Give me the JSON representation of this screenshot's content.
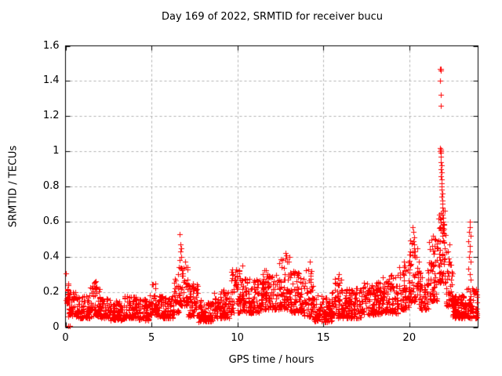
{
  "chart_data": {
    "type": "scatter",
    "title": "Day 169 of 2022, SRMTID for receiver bucu",
    "xlabel": "GPS time / hours",
    "ylabel": "SRMTID / TECUs",
    "xlim": [
      0,
      24
    ],
    "ylim": [
      0,
      1.6
    ],
    "xticks": [
      "0",
      "5",
      "10",
      "15",
      "20"
    ],
    "yticks": [
      "0",
      "0.2",
      "0.4",
      "0.6",
      "0.8",
      "1",
      "1.2",
      "1.4",
      "1.6"
    ],
    "grid": true,
    "legend": "none",
    "marker": "+",
    "marker_color": "#ff0000",
    "grid_color": "#b0b0b0",
    "border_color": "#000000",
    "background": "#ffffff",
    "band_segments": [
      [
        0.0,
        0.15,
        0.13,
        0.31,
        14
      ],
      [
        0.15,
        0.7,
        0.06,
        0.2,
        55
      ],
      [
        0.7,
        1.4,
        0.05,
        0.18,
        70
      ],
      [
        1.4,
        2.0,
        0.06,
        0.26,
        60
      ],
      [
        2.0,
        2.6,
        0.05,
        0.17,
        60
      ],
      [
        2.6,
        3.4,
        0.04,
        0.15,
        80
      ],
      [
        3.4,
        4.2,
        0.05,
        0.18,
        80
      ],
      [
        4.2,
        4.9,
        0.04,
        0.16,
        70
      ],
      [
        4.9,
        5.3,
        0.07,
        0.25,
        40
      ],
      [
        5.3,
        6.3,
        0.05,
        0.18,
        100
      ],
      [
        6.3,
        6.6,
        0.08,
        0.3,
        30
      ],
      [
        6.6,
        7.1,
        0.12,
        0.35,
        55
      ],
      [
        7.1,
        7.7,
        0.06,
        0.25,
        60
      ],
      [
        7.7,
        8.6,
        0.03,
        0.16,
        90
      ],
      [
        8.6,
        9.6,
        0.05,
        0.22,
        100
      ],
      [
        9.6,
        10.4,
        0.08,
        0.33,
        85
      ],
      [
        10.4,
        11.3,
        0.08,
        0.28,
        90
      ],
      [
        11.3,
        12.4,
        0.1,
        0.33,
        110
      ],
      [
        12.4,
        13.1,
        0.1,
        0.4,
        75
      ],
      [
        13.1,
        13.9,
        0.08,
        0.33,
        80
      ],
      [
        13.9,
        14.4,
        0.06,
        0.34,
        50
      ],
      [
        14.4,
        15.5,
        0.03,
        0.18,
        110
      ],
      [
        15.5,
        16.1,
        0.05,
        0.28,
        60
      ],
      [
        16.1,
        17.2,
        0.05,
        0.22,
        110
      ],
      [
        17.2,
        18.4,
        0.07,
        0.26,
        120
      ],
      [
        18.4,
        19.4,
        0.08,
        0.3,
        100
      ],
      [
        19.4,
        19.95,
        0.1,
        0.35,
        55
      ],
      [
        19.95,
        20.55,
        0.14,
        0.5,
        65
      ],
      [
        20.55,
        21.1,
        0.1,
        0.33,
        55
      ],
      [
        21.1,
        21.65,
        0.15,
        0.5,
        60
      ],
      [
        21.65,
        22.15,
        0.25,
        0.68,
        60
      ],
      [
        22.15,
        22.5,
        0.12,
        0.45,
        40
      ],
      [
        22.5,
        23.3,
        0.05,
        0.18,
        120
      ],
      [
        23.3,
        23.95,
        0.05,
        0.22,
        70
      ]
    ],
    "outliers": [
      [
        0.18,
        0.005
      ],
      [
        0.27,
        0.005
      ],
      [
        6.66,
        0.53
      ],
      [
        6.7,
        0.47
      ],
      [
        6.73,
        0.45
      ],
      [
        6.69,
        0.43
      ],
      [
        6.75,
        0.4
      ],
      [
        6.64,
        0.38
      ],
      [
        6.95,
        0.37
      ],
      [
        10.3,
        0.35
      ],
      [
        12.8,
        0.42
      ],
      [
        12.83,
        0.41
      ],
      [
        12.78,
        0.39
      ],
      [
        13.0,
        0.37
      ],
      [
        14.2,
        0.37
      ],
      [
        15.9,
        0.3
      ],
      [
        19.7,
        0.37
      ],
      [
        19.75,
        0.35
      ],
      [
        20.2,
        0.57
      ],
      [
        20.24,
        0.54
      ],
      [
        20.28,
        0.51
      ],
      [
        20.22,
        0.49
      ],
      [
        20.3,
        0.47
      ],
      [
        20.26,
        0.45
      ],
      [
        20.33,
        0.43
      ],
      [
        20.18,
        0.41
      ],
      [
        20.4,
        0.4
      ],
      [
        21.38,
        0.52
      ],
      [
        21.45,
        0.5
      ],
      [
        21.8,
        1.47
      ],
      [
        21.83,
        1.47
      ],
      [
        21.81,
        1.46
      ],
      [
        21.8,
        1.4
      ],
      [
        21.82,
        1.32
      ],
      [
        21.81,
        1.26
      ],
      [
        21.79,
        1.02
      ],
      [
        21.82,
        1.01
      ],
      [
        21.8,
        1.0
      ],
      [
        21.84,
        1.0
      ],
      [
        21.81,
        0.99
      ],
      [
        21.83,
        0.97
      ],
      [
        21.85,
        0.94
      ],
      [
        21.86,
        0.92
      ],
      [
        21.84,
        0.9
      ],
      [
        21.87,
        0.88
      ],
      [
        21.85,
        0.86
      ],
      [
        21.88,
        0.84
      ],
      [
        21.86,
        0.82
      ],
      [
        21.89,
        0.8
      ],
      [
        21.9,
        0.78
      ],
      [
        21.92,
        0.76
      ],
      [
        21.88,
        0.74
      ],
      [
        21.93,
        0.72
      ],
      [
        21.91,
        0.7
      ],
      [
        21.94,
        0.68
      ],
      [
        21.96,
        0.66
      ],
      [
        21.92,
        0.64
      ],
      [
        21.97,
        0.62
      ],
      [
        21.95,
        0.6
      ],
      [
        21.99,
        0.58
      ],
      [
        22.02,
        0.56
      ],
      [
        21.98,
        0.55
      ],
      [
        22.35,
        0.47
      ],
      [
        23.5,
        0.6
      ],
      [
        23.52,
        0.57
      ],
      [
        23.48,
        0.54
      ],
      [
        23.55,
        0.52
      ],
      [
        23.45,
        0.49
      ],
      [
        23.5,
        0.46
      ],
      [
        23.53,
        0.43
      ],
      [
        23.47,
        0.4
      ],
      [
        23.56,
        0.37
      ],
      [
        23.42,
        0.33
      ],
      [
        23.5,
        0.3
      ],
      [
        23.58,
        0.27
      ]
    ]
  }
}
